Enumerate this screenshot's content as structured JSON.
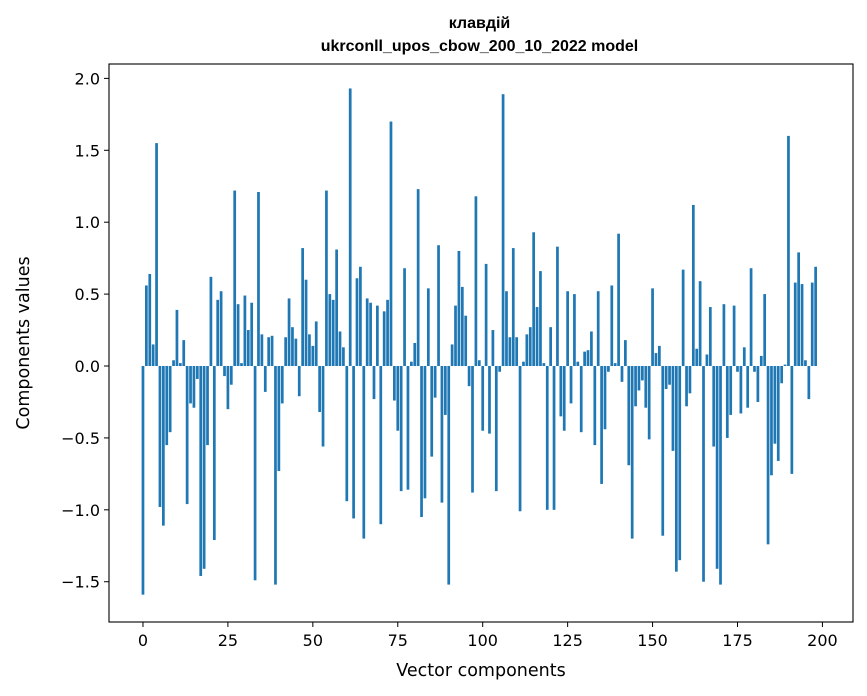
{
  "chart_data": {
    "type": "bar",
    "title": "клавдій",
    "subtitle": "ukrconll_upos_cbow_200_10_2022 model",
    "xlabel": "Vector components",
    "ylabel": "Components values",
    "xlim": [
      -10,
      209
    ],
    "ylim": [
      -1.78,
      2.1
    ],
    "xticks": [
      0,
      25,
      50,
      75,
      100,
      125,
      150,
      175,
      200
    ],
    "xtick_labels": [
      "0",
      "25",
      "50",
      "75",
      "100",
      "125",
      "150",
      "175",
      "200"
    ],
    "yticks": [
      -1.5,
      -1.0,
      -0.5,
      0.0,
      0.5,
      1.0,
      1.5,
      2.0
    ],
    "ytick_labels": [
      "−1.5",
      "−1.0",
      "−0.5",
      "0.0",
      "0.5",
      "1.0",
      "1.5",
      "2.0"
    ],
    "bar_color": "#1f77b4",
    "series": [
      {
        "name": "клавдій",
        "values": [
          -1.59,
          0.56,
          0.64,
          0.15,
          1.55,
          -0.98,
          -1.11,
          -0.55,
          -0.46,
          0.04,
          0.39,
          0.02,
          0.18,
          -0.96,
          -0.26,
          -0.29,
          -0.09,
          -1.46,
          -1.41,
          -0.55,
          0.62,
          -1.21,
          0.46,
          0.52,
          -0.07,
          -0.3,
          -0.13,
          1.22,
          0.43,
          0.02,
          0.49,
          0.25,
          0.44,
          -1.49,
          1.21,
          0.22,
          -0.18,
          0.2,
          0.21,
          -1.52,
          -0.73,
          -0.26,
          0.2,
          0.47,
          0.27,
          0.19,
          -0.21,
          0.82,
          0.6,
          0.22,
          0.14,
          0.31,
          -0.32,
          -0.56,
          1.22,
          0.5,
          0.46,
          0.81,
          0.24,
          0.13,
          -0.94,
          1.93,
          -1.06,
          0.61,
          0.69,
          -1.2,
          0.47,
          0.44,
          -0.23,
          0.42,
          -1.1,
          0.38,
          0.46,
          1.7,
          -0.24,
          -0.45,
          -0.87,
          0.68,
          -0.86,
          0.03,
          0.16,
          1.23,
          -1.05,
          -0.92,
          0.54,
          -0.63,
          -0.22,
          0.84,
          -0.95,
          -0.34,
          -1.52,
          0.15,
          0.42,
          0.8,
          0.55,
          0.35,
          -0.14,
          -0.88,
          1.18,
          0.04,
          -0.45,
          0.71,
          -0.47,
          0.25,
          -0.87,
          -0.04,
          1.89,
          0.52,
          0.2,
          0.82,
          0.2,
          -1.01,
          0.03,
          0.22,
          0.27,
          0.93,
          0.41,
          0.66,
          0.02,
          -1.0,
          0.27,
          -1.0,
          0.83,
          -0.35,
          -0.45,
          0.52,
          -0.26,
          0.5,
          0.03,
          -0.46,
          0.1,
          0.11,
          0.24,
          -0.55,
          0.52,
          -0.82,
          -0.44,
          -0.04,
          0.56,
          0.02,
          0.92,
          -0.11,
          0.18,
          -0.69,
          -1.2,
          -0.28,
          -0.17,
          -0.1,
          -0.29,
          -0.51,
          0.54,
          0.09,
          0.14,
          -1.18,
          -0.16,
          -0.13,
          -0.59,
          -1.43,
          -1.35,
          0.67,
          -0.28,
          -0.19,
          1.12,
          0.12,
          0.59,
          -1.5,
          0.08,
          0.41,
          -0.56,
          -1.41,
          -1.52,
          0.43,
          -0.5,
          -0.34,
          0.42,
          -0.04,
          -0.33,
          0.13,
          -0.29,
          0.68,
          -0.04,
          -0.25,
          0.07,
          0.5,
          -1.24,
          -0.76,
          -0.54,
          -0.66,
          -0.12,
          0.01,
          1.6,
          -0.75,
          0.58,
          0.79,
          0.57,
          0.04,
          -0.23,
          0.58,
          0.69
        ]
      }
    ]
  }
}
